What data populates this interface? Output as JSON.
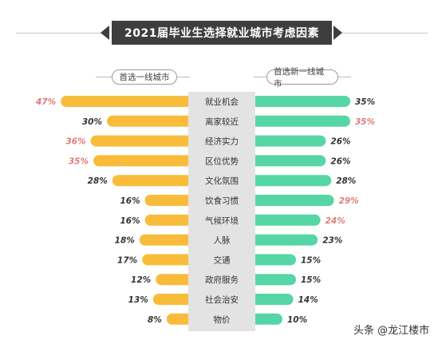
{
  "chart_data": {
    "type": "bar",
    "title": "2021届毕业生选择就业城市考虑因素",
    "categories": [
      "就业机会",
      "离家较近",
      "经济实力",
      "区位优势",
      "文化氛围",
      "饮食习惯",
      "气候环境",
      "人脉",
      "交通",
      "政府服务",
      "社会治安",
      "物价"
    ],
    "series": [
      {
        "name": "首选一线城市",
        "values": [
          47,
          30,
          36,
          35,
          28,
          16,
          16,
          18,
          17,
          12,
          13,
          8
        ],
        "labels": [
          "47%",
          "30%",
          "36%",
          "35%",
          "28%",
          "16%",
          "16%",
          "18%",
          "17%",
          "12%",
          "13%",
          "8%"
        ],
        "highlight": [
          true,
          false,
          true,
          true,
          false,
          false,
          false,
          false,
          false,
          false,
          false,
          false
        ]
      },
      {
        "name": "首选新一线城市",
        "values": [
          35,
          35,
          26,
          26,
          28,
          29,
          24,
          23,
          15,
          15,
          14,
          10
        ],
        "labels": [
          "35%",
          "35%",
          "26%",
          "26%",
          "28%",
          "29%",
          "24%",
          "23%",
          "15%",
          "15%",
          "14%",
          "10%"
        ],
        "highlight": [
          false,
          true,
          false,
          false,
          false,
          true,
          true,
          false,
          false,
          false,
          false,
          false
        ]
      }
    ],
    "xlim": [
      0,
      50
    ],
    "colors": {
      "left": "#f9bc3a",
      "right": "#56d6a6",
      "highlight_text": "#e07a7a",
      "normal_text": "#333333"
    }
  },
  "watermark": "头条 @龙江楼市"
}
